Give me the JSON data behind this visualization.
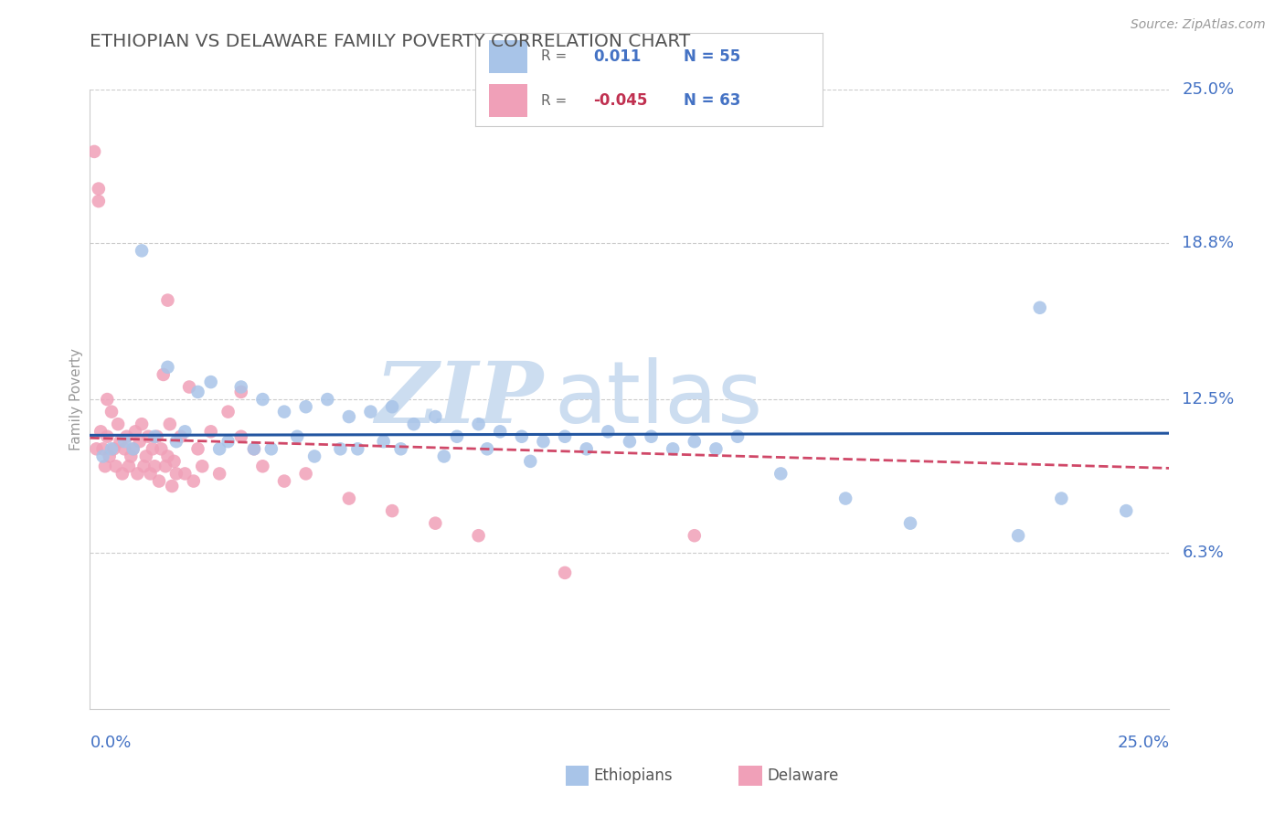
{
  "title": "ETHIOPIAN VS DELAWARE FAMILY POVERTY CORRELATION CHART",
  "source": "Source: ZipAtlas.com",
  "ylabel": "Family Poverty",
  "xmin": 0.0,
  "xmax": 25.0,
  "ymin": 0.0,
  "ymax": 25.0,
  "ytick_vals": [
    0.0,
    6.3,
    12.5,
    18.8,
    25.0
  ],
  "ytick_labels": [
    "",
    "6.3%",
    "12.5%",
    "18.8%",
    "25.0%"
  ],
  "blue_R": "0.011",
  "blue_N": "55",
  "pink_R": "-0.045",
  "pink_N": "63",
  "blue_scatter_color": "#a8c4e8",
  "pink_scatter_color": "#f0a0b8",
  "blue_line_color": "#2255a0",
  "pink_line_color": "#d04868",
  "blue_label_color": "#4472c4",
  "pink_label_color": "#c03050",
  "watermark_zip": "ZIP",
  "watermark_atlas": "atlas",
  "watermark_color": "#ccddf0",
  "title_color": "#555555",
  "axis_tick_color": "#4472c4",
  "grid_color": "#cccccc",
  "background": "#ffffff",
  "blue_x": [
    1.2,
    1.8,
    2.5,
    2.8,
    3.5,
    4.0,
    4.5,
    5.0,
    5.5,
    6.0,
    6.5,
    7.0,
    7.5,
    8.0,
    8.5,
    9.0,
    9.5,
    10.0,
    10.5,
    11.0,
    11.5,
    12.0,
    12.5,
    13.0,
    13.5,
    14.0,
    14.5,
    15.0,
    0.3,
    0.5,
    0.8,
    1.0,
    1.5,
    2.0,
    2.2,
    3.0,
    3.2,
    3.8,
    4.2,
    4.8,
    5.2,
    5.8,
    6.2,
    6.8,
    7.2,
    8.2,
    9.2,
    10.2,
    16.0,
    19.0,
    21.5,
    22.5,
    24.0,
    22.0,
    17.5
  ],
  "blue_y": [
    18.5,
    13.8,
    12.8,
    13.2,
    13.0,
    12.5,
    12.0,
    12.2,
    12.5,
    11.8,
    12.0,
    12.2,
    11.5,
    11.8,
    11.0,
    11.5,
    11.2,
    11.0,
    10.8,
    11.0,
    10.5,
    11.2,
    10.8,
    11.0,
    10.5,
    10.8,
    10.5,
    11.0,
    10.2,
    10.5,
    10.8,
    10.5,
    11.0,
    10.8,
    11.2,
    10.5,
    10.8,
    10.5,
    10.5,
    11.0,
    10.2,
    10.5,
    10.5,
    10.8,
    10.5,
    10.2,
    10.5,
    10.0,
    9.5,
    7.5,
    7.0,
    8.5,
    8.0,
    16.2,
    8.5
  ],
  "pink_x": [
    0.1,
    0.15,
    0.2,
    0.25,
    0.3,
    0.35,
    0.4,
    0.45,
    0.5,
    0.55,
    0.6,
    0.65,
    0.7,
    0.75,
    0.8,
    0.85,
    0.9,
    0.95,
    1.0,
    1.05,
    1.1,
    1.15,
    1.2,
    1.25,
    1.3,
    1.35,
    1.4,
    1.45,
    1.5,
    1.55,
    1.6,
    1.65,
    1.7,
    1.75,
    1.8,
    1.85,
    1.9,
    1.95,
    2.0,
    2.1,
    2.2,
    2.3,
    2.4,
    2.5,
    2.6,
    2.8,
    3.0,
    3.2,
    3.5,
    3.8,
    4.0,
    4.5,
    5.0,
    6.0,
    7.0,
    8.0,
    9.0,
    11.0,
    14.0,
    0.2,
    0.4,
    1.8,
    3.5
  ],
  "pink_y": [
    22.5,
    10.5,
    21.0,
    11.2,
    10.5,
    9.8,
    11.0,
    10.2,
    12.0,
    10.5,
    9.8,
    11.5,
    10.8,
    9.5,
    10.5,
    11.0,
    9.8,
    10.2,
    10.5,
    11.2,
    9.5,
    10.8,
    11.5,
    9.8,
    10.2,
    11.0,
    9.5,
    10.5,
    9.8,
    11.0,
    9.2,
    10.5,
    13.5,
    9.8,
    10.2,
    11.5,
    9.0,
    10.0,
    9.5,
    11.0,
    9.5,
    13.0,
    9.2,
    10.5,
    9.8,
    11.2,
    9.5,
    12.0,
    11.0,
    10.5,
    9.8,
    9.2,
    9.5,
    8.5,
    8.0,
    7.5,
    7.0,
    5.5,
    7.0,
    20.5,
    12.5,
    16.5,
    12.8
  ]
}
